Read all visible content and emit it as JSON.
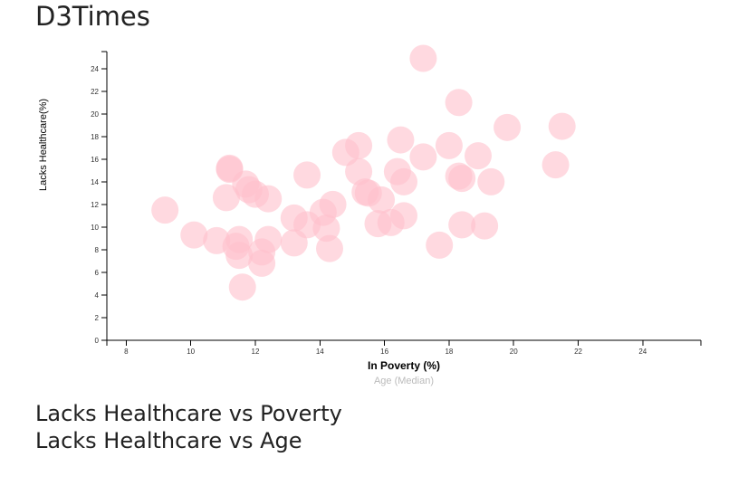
{
  "page": {
    "title": "D3Times",
    "subtitles": [
      "Lacks Healthcare vs Poverty",
      "Lacks Healthcare vs Age"
    ]
  },
  "chart_data": {
    "type": "scatter",
    "xlabel": "In Poverty (%)",
    "xlabel_alt": "Age (Median)",
    "ylabel": "Lacks Healthcare(%)",
    "xlim": [
      7.4,
      25.8
    ],
    "ylim": [
      0,
      25.5
    ],
    "x_ticks": [
      8,
      10,
      12,
      14,
      16,
      18,
      20,
      22,
      24
    ],
    "y_ticks": [
      0,
      2,
      4,
      6,
      8,
      10,
      12,
      14,
      16,
      18,
      20,
      22,
      24
    ],
    "grid": false,
    "point_color": "#ffc0cb",
    "points": [
      {
        "x": 17.2,
        "y": 24.9
      },
      {
        "x": 18.3,
        "y": 21.0
      },
      {
        "x": 19.8,
        "y": 18.8
      },
      {
        "x": 21.5,
        "y": 18.9
      },
      {
        "x": 21.3,
        "y": 15.5
      },
      {
        "x": 16.5,
        "y": 17.7
      },
      {
        "x": 15.2,
        "y": 17.2
      },
      {
        "x": 14.8,
        "y": 16.6
      },
      {
        "x": 18.0,
        "y": 17.2
      },
      {
        "x": 18.9,
        "y": 16.3
      },
      {
        "x": 17.2,
        "y": 16.2
      },
      {
        "x": 16.4,
        "y": 14.9
      },
      {
        "x": 16.6,
        "y": 14.0
      },
      {
        "x": 18.3,
        "y": 14.5
      },
      {
        "x": 18.4,
        "y": 14.3
      },
      {
        "x": 19.3,
        "y": 14.0
      },
      {
        "x": 15.2,
        "y": 14.9
      },
      {
        "x": 15.4,
        "y": 13.1
      },
      {
        "x": 15.5,
        "y": 13.0
      },
      {
        "x": 15.9,
        "y": 12.4
      },
      {
        "x": 13.6,
        "y": 14.6
      },
      {
        "x": 11.2,
        "y": 15.1
      },
      {
        "x": 11.2,
        "y": 15.2
      },
      {
        "x": 11.7,
        "y": 13.8
      },
      {
        "x": 11.8,
        "y": 13.3
      },
      {
        "x": 12.0,
        "y": 12.9
      },
      {
        "x": 12.4,
        "y": 12.5
      },
      {
        "x": 11.1,
        "y": 12.6
      },
      {
        "x": 14.4,
        "y": 12.0
      },
      {
        "x": 14.1,
        "y": 11.3
      },
      {
        "x": 13.2,
        "y": 10.8
      },
      {
        "x": 13.6,
        "y": 10.2
      },
      {
        "x": 14.2,
        "y": 9.9
      },
      {
        "x": 9.2,
        "y": 11.5
      },
      {
        "x": 10.1,
        "y": 9.3
      },
      {
        "x": 10.8,
        "y": 8.8
      },
      {
        "x": 11.5,
        "y": 8.9
      },
      {
        "x": 11.4,
        "y": 8.3
      },
      {
        "x": 11.5,
        "y": 7.5
      },
      {
        "x": 12.2,
        "y": 7.8
      },
      {
        "x": 12.4,
        "y": 8.9
      },
      {
        "x": 12.2,
        "y": 6.8
      },
      {
        "x": 13.2,
        "y": 8.6
      },
      {
        "x": 14.3,
        "y": 8.1
      },
      {
        "x": 11.6,
        "y": 4.7
      },
      {
        "x": 15.8,
        "y": 10.3
      },
      {
        "x": 16.2,
        "y": 10.4
      },
      {
        "x": 16.6,
        "y": 11.0
      },
      {
        "x": 17.7,
        "y": 8.4
      },
      {
        "x": 18.4,
        "y": 10.2
      },
      {
        "x": 19.1,
        "y": 10.1
      }
    ]
  }
}
